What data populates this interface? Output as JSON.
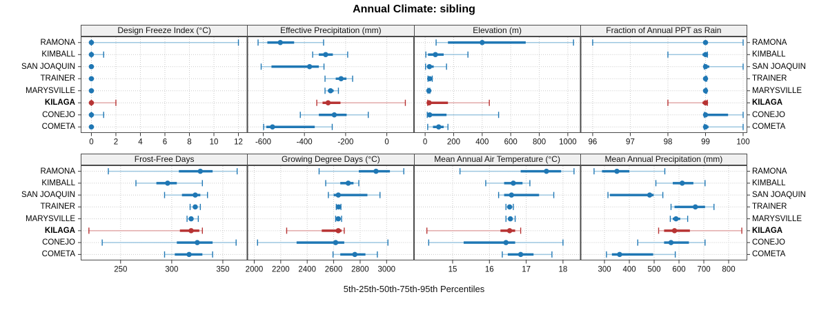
{
  "chart_data": {
    "type": "dotplot",
    "title": "Annual Climate: sibling",
    "xlabel": "5th-25th-50th-75th-95th Percentiles",
    "percentiles": [
      5,
      25,
      50,
      75,
      95
    ],
    "stations": [
      "RAMONA",
      "KIMBALL",
      "SAN JOAQUIN",
      "TRAINER",
      "MARYSVILLE",
      "KILAGA",
      "CONEJO",
      "COMETA"
    ],
    "highlight_station": "KILAGA",
    "legend_position": "none",
    "grid": "dotted",
    "colors": {
      "series_main": "#1f77b4",
      "series_light": "#9dc7e0",
      "highlight_main": "#b73333",
      "highlight_light": "#e2a9a9",
      "gridline": "#c8c8c8",
      "panel_border": "#4a4a4a",
      "header_bg": "#f0f0f0",
      "tick": "#333333"
    },
    "panels": [
      {
        "title": "Design Freeze Index (°C)",
        "row": 0,
        "col": 0,
        "xlim": [
          -0.87,
          12.73
        ],
        "ticks": [
          0,
          2,
          4,
          6,
          8,
          10,
          12
        ],
        "values": [
          [
            0,
            0,
            0,
            0.1,
            12
          ],
          [
            0,
            0,
            0,
            0.1,
            1
          ],
          [
            0,
            0,
            0,
            0,
            0
          ],
          [
            0,
            0,
            0,
            0,
            0
          ],
          [
            0,
            0,
            0,
            0,
            0
          ],
          [
            0,
            0,
            0,
            0.1,
            2
          ],
          [
            0,
            0,
            0,
            0.1,
            1
          ],
          [
            0,
            0,
            0,
            0,
            0
          ]
        ]
      },
      {
        "title": "Effective Precipitation (mm)",
        "row": 0,
        "col": 1,
        "xlim": [
          -677,
          132
        ],
        "ticks": [
          -600,
          -400,
          -200,
          0
        ],
        "values": [
          [
            -625,
            -580,
            -517,
            -450,
            -307
          ],
          [
            -360,
            -330,
            -297,
            -262,
            -190
          ],
          [
            -610,
            -560,
            -375,
            -330,
            -305
          ],
          [
            -300,
            -248,
            -222,
            -196,
            -166
          ],
          [
            -300,
            -286,
            -273,
            -258,
            -235
          ],
          [
            -340,
            -312,
            -285,
            -225,
            90
          ],
          [
            -420,
            -330,
            -255,
            -195,
            -90
          ],
          [
            -598,
            -585,
            -555,
            -350,
            -265
          ]
        ]
      },
      {
        "title": "Elevation (m)",
        "row": 0,
        "col": 2,
        "xlim": [
          -78,
          1090
        ],
        "ticks": [
          0,
          200,
          400,
          600,
          800,
          1000
        ],
        "values": [
          [
            77,
            160,
            400,
            705,
            1040
          ],
          [
            5,
            20,
            72,
            130,
            300
          ],
          [
            3,
            15,
            30,
            60,
            150
          ],
          [
            20,
            27,
            32,
            38,
            50
          ],
          [
            20,
            23,
            26,
            29,
            33
          ],
          [
            18,
            22,
            28,
            160,
            450
          ],
          [
            15,
            22,
            32,
            150,
            515
          ],
          [
            18,
            55,
            95,
            130,
            160
          ]
        ]
      },
      {
        "title": "Fraction of Annual PPT as Rain",
        "row": 0,
        "col": 3,
        "xlim": [
          95.68,
          100.11
        ],
        "ticks": [
          96,
          97,
          98,
          99,
          100
        ],
        "values": [
          [
            96,
            98.95,
            99,
            99.05,
            100
          ],
          [
            98,
            98.92,
            99,
            99.02,
            99.05
          ],
          [
            98.97,
            99,
            99,
            99.1,
            100
          ],
          [
            99,
            99,
            99,
            99,
            99.03
          ],
          [
            99,
            99,
            99,
            99,
            99.03
          ],
          [
            98,
            98.92,
            99,
            99.02,
            99.05
          ],
          [
            98.97,
            99,
            99,
            99.6,
            100
          ],
          [
            98.97,
            99,
            99,
            99.08,
            100
          ]
        ]
      },
      {
        "title": "Frost-Free Days",
        "row": 1,
        "col": 0,
        "xlim": [
          211,
          374
        ],
        "ticks": [
          250,
          300,
          350
        ],
        "values": [
          [
            238,
            307,
            328,
            340,
            364
          ],
          [
            265,
            285,
            296,
            305,
            330
          ],
          [
            293,
            310,
            323,
            328,
            335
          ],
          [
            318,
            321,
            323,
            325,
            328
          ],
          [
            315,
            317,
            319,
            321,
            326
          ],
          [
            219,
            308,
            319,
            327,
            330
          ],
          [
            232,
            305,
            325,
            340,
            363
          ],
          [
            293,
            303,
            317,
            330,
            340
          ]
        ]
      },
      {
        "title": "Growing Degree Days (°C)",
        "row": 1,
        "col": 1,
        "xlim": [
          1948,
          3207
        ],
        "ticks": [
          2000,
          2200,
          2400,
          2600,
          2800,
          3000
        ],
        "values": [
          [
            2490,
            2790,
            2920,
            3025,
            3130
          ],
          [
            2540,
            2650,
            2710,
            2750,
            2790
          ],
          [
            2560,
            2600,
            2635,
            2855,
            2950
          ],
          [
            2620,
            2630,
            2637,
            2645,
            2655
          ],
          [
            2615,
            2625,
            2635,
            2645,
            2660
          ],
          [
            2245,
            2510,
            2635,
            2660,
            2680
          ],
          [
            2025,
            2320,
            2615,
            2680,
            3010
          ],
          [
            2595,
            2650,
            2760,
            2840,
            2930
          ]
        ]
      },
      {
        "title": "Mean Annual Air Temperature (°C)",
        "row": 1,
        "col": 2,
        "xlim": [
          13.95,
          18.48
        ],
        "ticks": [
          15,
          16,
          17,
          18
        ],
        "values": [
          [
            15.2,
            16.85,
            17.55,
            17.95,
            18.3
          ],
          [
            15.9,
            16.4,
            16.65,
            16.9,
            17.1
          ],
          [
            16.25,
            16.4,
            16.6,
            17.35,
            17.75
          ],
          [
            16.45,
            16.5,
            16.55,
            16.6,
            16.65
          ],
          [
            16.45,
            16.52,
            16.57,
            16.62,
            16.7
          ],
          [
            14.3,
            16.3,
            16.55,
            16.7,
            16.85
          ],
          [
            14.35,
            15.3,
            16.45,
            16.7,
            18.0
          ],
          [
            16.35,
            16.5,
            16.85,
            17.2,
            17.7
          ]
        ]
      },
      {
        "title": "Mean Annual Precipitation (mm)",
        "row": 1,
        "col": 3,
        "xlim": [
          204,
          875
        ],
        "ticks": [
          300,
          400,
          500,
          600,
          700,
          800
        ],
        "values": [
          [
            258,
            290,
            350,
            400,
            543
          ],
          [
            507,
            575,
            613,
            658,
            705
          ],
          [
            314,
            322,
            482,
            498,
            535
          ],
          [
            568,
            582,
            666,
            705,
            741
          ],
          [
            565,
            575,
            588,
            605,
            635
          ],
          [
            518,
            540,
            582,
            644,
            853
          ],
          [
            434,
            540,
            568,
            640,
            705
          ],
          [
            308,
            330,
            361,
            496,
            585
          ]
        ]
      }
    ]
  }
}
